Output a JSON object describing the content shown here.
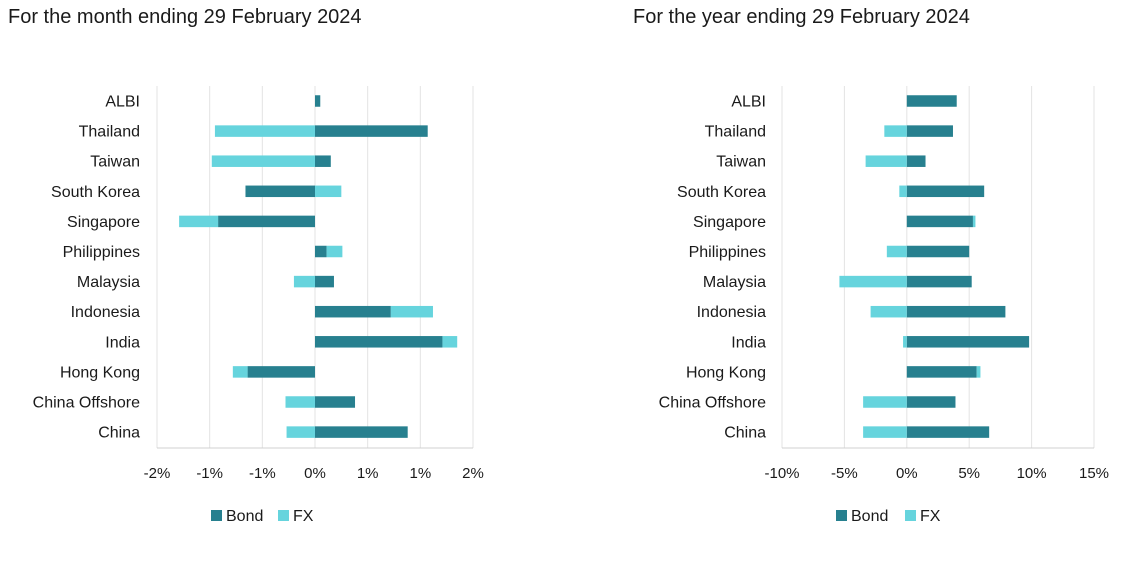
{
  "colors": {
    "bond": "#27808f",
    "fx": "#66d4dd",
    "grid": "#e3e3e3"
  },
  "legend": {
    "bond": "Bond",
    "fx": "FX"
  },
  "chart_data": [
    {
      "type": "bar",
      "orientation": "horizontal",
      "stacked": true,
      "title": "For the month ending 29 February 2024",
      "categories": [
        "ALBI",
        "Thailand",
        "Taiwan",
        "South Korea",
        "Singapore",
        "Philippines",
        "Malaysia",
        "Indonesia",
        "India",
        "Hong Kong",
        "China Offshore",
        "China"
      ],
      "series": [
        {
          "name": "Bond",
          "values": [
            0.05,
            1.07,
            0.15,
            -0.66,
            -0.92,
            0.11,
            0.18,
            0.72,
            1.21,
            -0.64,
            0.38,
            0.88
          ]
        },
        {
          "name": "FX",
          "values": [
            0.0,
            -0.95,
            -0.98,
            0.25,
            -0.37,
            0.15,
            -0.2,
            0.4,
            0.14,
            -0.14,
            -0.28,
            -0.27
          ]
        }
      ],
      "xlim": [
        -1.5,
        1.5
      ],
      "xticks": [
        -1.5,
        -1.0,
        -0.5,
        0,
        0.5,
        1.0,
        1.5
      ],
      "xtick_labels": [
        "-2%",
        "-1%",
        "-1%",
        "0%",
        "1%",
        "1%",
        "2%"
      ],
      "grid": true,
      "legend_position": "bottom"
    },
    {
      "type": "bar",
      "orientation": "horizontal",
      "stacked": true,
      "title": "For the year ending 29 February 2024",
      "categories": [
        "ALBI",
        "Thailand",
        "Taiwan",
        "South Korea",
        "Singapore",
        "Philippines",
        "Malaysia",
        "Indonesia",
        "India",
        "Hong Kong",
        "China Offshore",
        "China"
      ],
      "series": [
        {
          "name": "Bond",
          "values": [
            4.0,
            3.7,
            1.5,
            6.2,
            5.3,
            5.0,
            5.2,
            7.9,
            9.8,
            5.6,
            3.9,
            6.6
          ]
        },
        {
          "name": "FX",
          "values": [
            0.0,
            -1.8,
            -3.3,
            -0.6,
            0.2,
            -1.6,
            -5.4,
            -2.9,
            -0.3,
            0.3,
            -3.5,
            -3.5
          ]
        }
      ],
      "xlim": [
        -10,
        15
      ],
      "xticks": [
        -10,
        -5,
        0,
        5,
        10,
        15
      ],
      "xtick_labels": [
        "-10%",
        "-5%",
        "0%",
        "5%",
        "10%",
        "15%"
      ],
      "grid": true,
      "legend_position": "bottom"
    }
  ]
}
